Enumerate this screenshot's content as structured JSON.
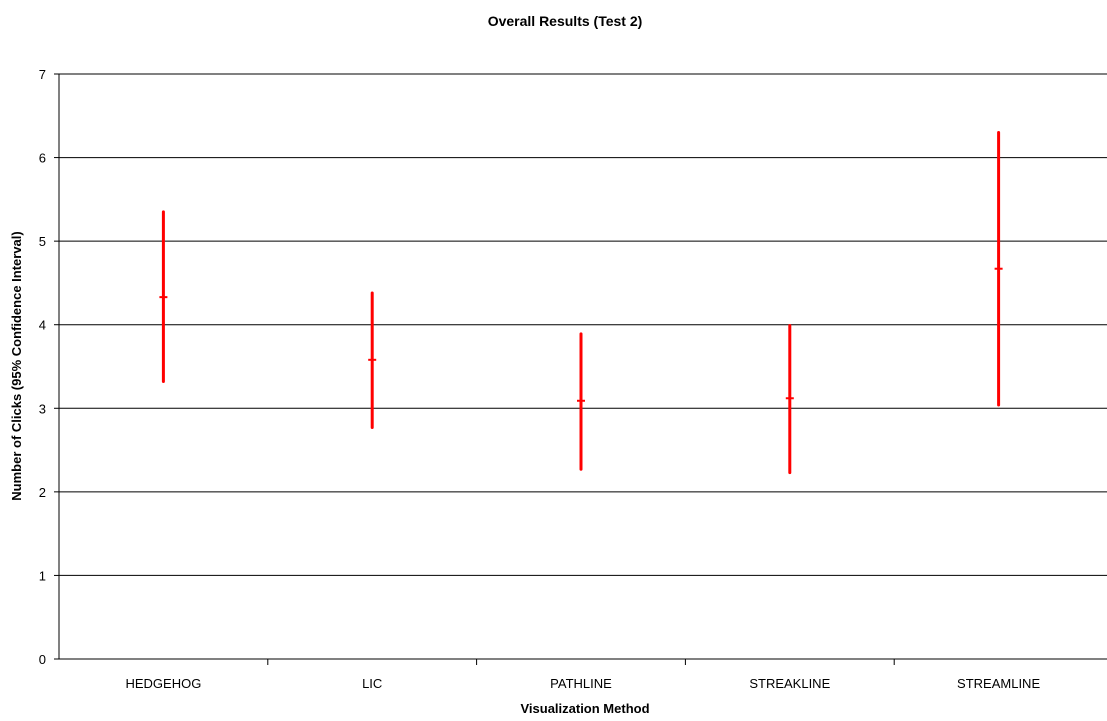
{
  "chart_data": {
    "type": "errorbar",
    "title": "Overall Results (Test 2)",
    "xlabel": "Visualization Method",
    "ylabel": "Number of Clicks (95% Confidence Interval)",
    "ylim": [
      0,
      7
    ],
    "yticks": [
      0,
      1,
      2,
      3,
      4,
      5,
      6,
      7
    ],
    "grid": true,
    "categories": [
      "HEDGEHOG",
      "LIC",
      "PATHLINE",
      "STREAKLINE",
      "STREAMLINE"
    ],
    "series": [
      {
        "mean": [
          4.33,
          3.58,
          3.09,
          3.12,
          4.67
        ],
        "low": [
          3.32,
          2.77,
          2.27,
          2.23,
          3.04
        ],
        "high": [
          5.35,
          4.38,
          3.89,
          3.99,
          6.3
        ],
        "color": "#ff0000"
      }
    ],
    "axis_color": "#000000",
    "grid_color": "#000000"
  }
}
